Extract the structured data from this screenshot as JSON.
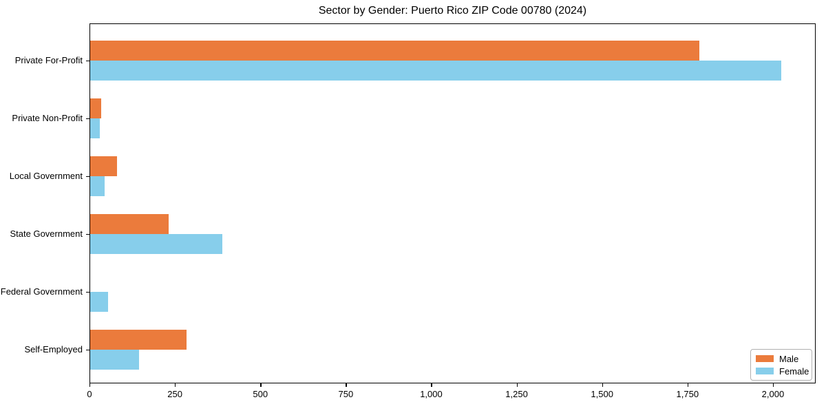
{
  "chart_data": {
    "type": "bar",
    "orientation": "horizontal",
    "title": "Sector by Gender: Puerto Rico ZIP Code 00780 (2024)",
    "categories": [
      "Private For-Profit",
      "Private Non-Profit",
      "Local Government",
      "State Government",
      "Federal Government",
      "Self-Employed"
    ],
    "series": [
      {
        "name": "Male",
        "color": "#EB7B3C",
        "values": [
          1785,
          35,
          80,
          232,
          0,
          285
        ]
      },
      {
        "name": "Female",
        "color": "#87CEEB",
        "values": [
          2025,
          30,
          45,
          388,
          55,
          145
        ]
      }
    ],
    "xlabel": "",
    "ylabel": "",
    "xlim": [
      0,
      2125
    ],
    "xticks": [
      0,
      250,
      500,
      750,
      1000,
      1250,
      1500,
      1750,
      2000
    ],
    "xtick_labels": [
      "0",
      "250",
      "500",
      "750",
      "1,000",
      "1,250",
      "1,500",
      "1,750",
      "2,000"
    ],
    "grid": false,
    "legend_position": "lower-right",
    "axis_color": "#000000",
    "background_color": "#ffffff"
  }
}
